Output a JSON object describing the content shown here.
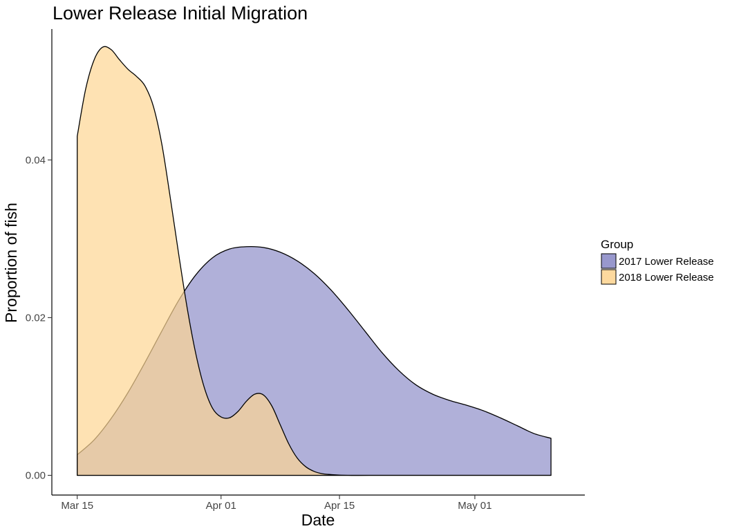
{
  "chart_data": {
    "type": "area",
    "title": "Lower Release Initial Migration",
    "xlabel": "Date",
    "ylabel": "Proportion of fish",
    "x_tick_labels": [
      "Mar 15",
      "Apr 01",
      "Apr 15",
      "May 01"
    ],
    "x_tick_dates": [
      "2018-03-15",
      "2018-04-01",
      "2018-04-15",
      "2018-05-01"
    ],
    "y_tick_labels": [
      "0.00",
      "0.02",
      "0.04"
    ],
    "y_ticks": [
      0,
      0.02,
      0.04
    ],
    "xlim": [
      "2018-03-12",
      "2018-05-14"
    ],
    "ylim": [
      -0.0025,
      0.0566
    ],
    "grid": false,
    "legend": {
      "title": "Group",
      "position": "right"
    },
    "series": [
      {
        "name": "2017 Lower Release",
        "color": "#8686c4",
        "fill_opacity": 0.65,
        "points": [
          [
            "2018-03-15",
            0.0026
          ],
          [
            "2018-03-17",
            0.0045
          ],
          [
            "2018-03-19",
            0.0072
          ],
          [
            "2018-03-21",
            0.0105
          ],
          [
            "2018-03-23",
            0.0143
          ],
          [
            "2018-03-25",
            0.0183
          ],
          [
            "2018-03-27",
            0.0222
          ],
          [
            "2018-03-29",
            0.0254
          ],
          [
            "2018-03-31",
            0.0276
          ],
          [
            "2018-04-02",
            0.0287
          ],
          [
            "2018-04-04",
            0.029
          ],
          [
            "2018-04-06",
            0.0289
          ],
          [
            "2018-04-08",
            0.0283
          ],
          [
            "2018-04-10",
            0.0272
          ],
          [
            "2018-04-12",
            0.0256
          ],
          [
            "2018-04-14",
            0.0235
          ],
          [
            "2018-04-16",
            0.021
          ],
          [
            "2018-04-18",
            0.0183
          ],
          [
            "2018-04-20",
            0.0156
          ],
          [
            "2018-04-22",
            0.0133
          ],
          [
            "2018-04-24",
            0.0115
          ],
          [
            "2018-04-26",
            0.0103
          ],
          [
            "2018-04-28",
            0.0095
          ],
          [
            "2018-04-30",
            0.0089
          ],
          [
            "2018-05-02",
            0.0082
          ],
          [
            "2018-05-04",
            0.0073
          ],
          [
            "2018-05-06",
            0.0063
          ],
          [
            "2018-05-08",
            0.0053
          ],
          [
            "2018-05-10",
            0.0047
          ]
        ]
      },
      {
        "name": "2018 Lower Release",
        "color": "#fdd593",
        "fill_opacity": 0.7,
        "points": [
          [
            "2018-03-15",
            0.043
          ],
          [
            "2018-03-16",
            0.049
          ],
          [
            "2018-03-17",
            0.0527
          ],
          [
            "2018-03-18",
            0.0543
          ],
          [
            "2018-03-19",
            0.054
          ],
          [
            "2018-03-20",
            0.0527
          ],
          [
            "2018-03-21",
            0.0515
          ],
          [
            "2018-03-22",
            0.0506
          ],
          [
            "2018-03-23",
            0.0494
          ],
          [
            "2018-03-24",
            0.0468
          ],
          [
            "2018-03-25",
            0.042
          ],
          [
            "2018-03-26",
            0.0352
          ],
          [
            "2018-03-27",
            0.028
          ],
          [
            "2018-03-28",
            0.0212
          ],
          [
            "2018-03-29",
            0.0155
          ],
          [
            "2018-03-30",
            0.0112
          ],
          [
            "2018-03-31",
            0.0085
          ],
          [
            "2018-04-01",
            0.0074
          ],
          [
            "2018-04-02",
            0.0073
          ],
          [
            "2018-04-03",
            0.0081
          ],
          [
            "2018-04-04",
            0.0094
          ],
          [
            "2018-04-05",
            0.0103
          ],
          [
            "2018-04-06",
            0.0102
          ],
          [
            "2018-04-07",
            0.0088
          ],
          [
            "2018-04-08",
            0.0064
          ],
          [
            "2018-04-09",
            0.004
          ],
          [
            "2018-04-10",
            0.0022
          ],
          [
            "2018-04-11",
            0.0011
          ],
          [
            "2018-04-12",
            0.0005
          ],
          [
            "2018-04-13",
            0.0002
          ],
          [
            "2018-04-14",
            0.0001
          ],
          [
            "2018-04-16",
            0.0
          ],
          [
            "2018-04-20",
            0.0
          ],
          [
            "2018-04-24",
            0.0
          ],
          [
            "2018-04-28",
            0.0
          ],
          [
            "2018-05-02",
            0.0
          ],
          [
            "2018-05-06",
            0.0
          ],
          [
            "2018-05-10",
            0.0
          ]
        ]
      }
    ]
  }
}
